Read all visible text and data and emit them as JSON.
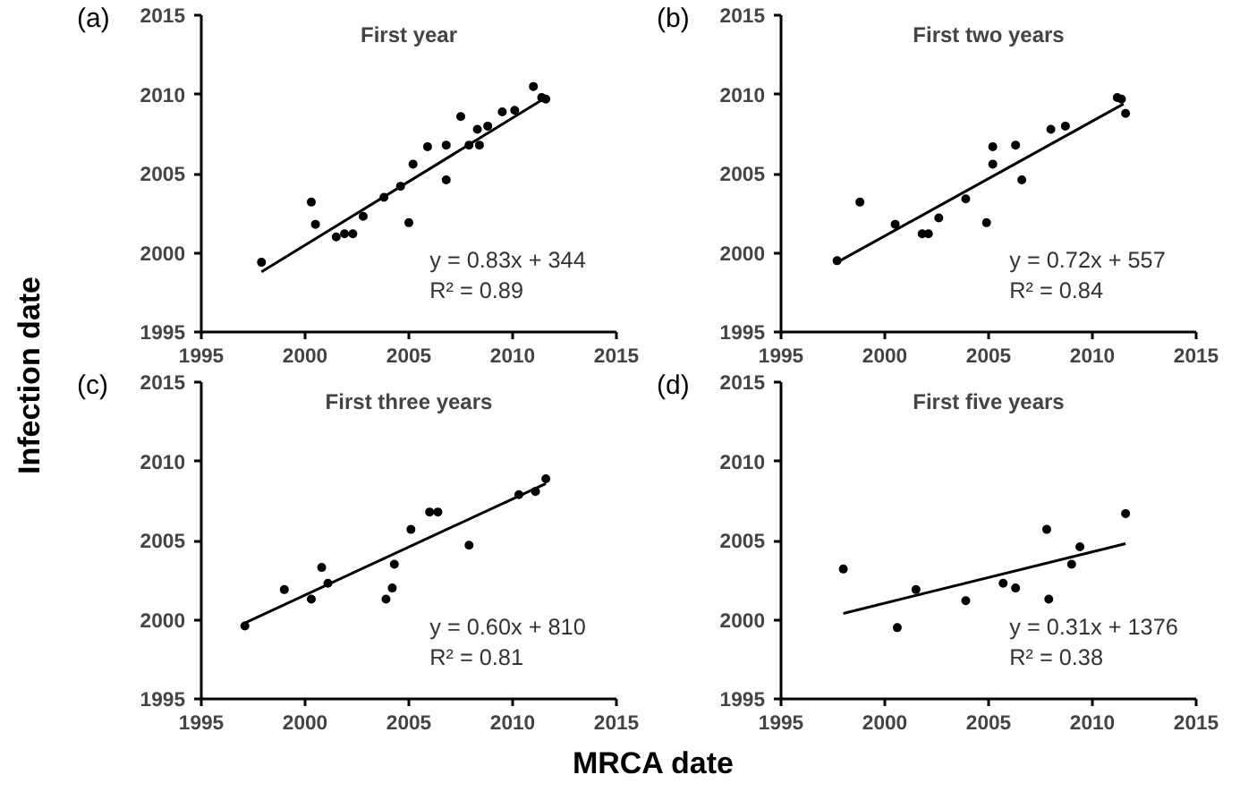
{
  "chart_data": [
    {
      "type": "scatter",
      "title": "First year",
      "ylabel": "Infection date",
      "annotations": [
        "(a)",
        "y = 0.83x + 344",
        "R² = 0.89"
      ],
      "xlim": [
        1995,
        2015
      ],
      "ylim": [
        1995,
        2015
      ],
      "xticks": [
        1995,
        2000,
        2005,
        2010,
        2015
      ],
      "yticks": [
        1995,
        2000,
        2005,
        2010,
        2015
      ],
      "grid": false,
      "marker": "circle",
      "series": [
        {
          "type": "scatter",
          "color": "#000000",
          "x": [
            1997.9,
            2000.3,
            2000.5,
            2001.5,
            2001.9,
            2002.3,
            2002.8,
            2003.8,
            2004.6,
            2005.0,
            2005.2,
            2005.9,
            2006.8,
            2006.8,
            2007.5,
            2007.9,
            2008.3,
            2008.4,
            2008.8,
            2009.5,
            2010.1,
            2011.0,
            2011.4,
            2011.6
          ],
          "values": [
            1999.4,
            2003.2,
            2001.8,
            2001.0,
            2001.2,
            2001.2,
            2002.3,
            2003.5,
            2004.2,
            2001.9,
            2005.6,
            2006.7,
            2006.8,
            2004.6,
            2008.6,
            2006.8,
            2007.8,
            2006.8,
            2008.0,
            2008.9,
            2009.0,
            2010.5,
            2009.8,
            2009.7
          ]
        },
        {
          "type": "line",
          "color": "#000000",
          "marker": "none",
          "x": [
            1997.9,
            2011.6
          ],
          "values": [
            1998.8,
            2009.8
          ]
        }
      ]
    },
    {
      "type": "scatter",
      "title": "First two years",
      "annotations": [
        "(b)",
        "y = 0.72x + 557",
        "R² = 0.84"
      ],
      "xlim": [
        1995,
        2015
      ],
      "ylim": [
        1995,
        2015
      ],
      "xticks": [
        1995,
        2000,
        2005,
        2010,
        2015
      ],
      "yticks": [
        1995,
        2000,
        2005,
        2010,
        2015
      ],
      "grid": false,
      "marker": "circle",
      "series": [
        {
          "type": "scatter",
          "color": "#000000",
          "x": [
            1997.7,
            1998.8,
            2000.5,
            2001.8,
            2002.1,
            2002.6,
            2003.9,
            2004.9,
            2005.2,
            2005.2,
            2006.3,
            2006.6,
            2008.0,
            2008.7,
            2011.2,
            2011.4,
            2011.6
          ],
          "values": [
            1999.5,
            2003.2,
            2001.8,
            2001.2,
            2001.2,
            2002.2,
            2003.4,
            2001.9,
            2006.7,
            2005.6,
            2006.8,
            2004.6,
            2007.8,
            2008.0,
            2009.8,
            2009.7,
            2008.8
          ]
        },
        {
          "type": "line",
          "color": "#000000",
          "marker": "none",
          "x": [
            1997.7,
            2011.5
          ],
          "values": [
            1999.4,
            2009.4
          ]
        }
      ]
    },
    {
      "type": "scatter",
      "title": "First three years",
      "xlabel": "MRCA date",
      "annotations": [
        "(c)",
        "y = 0.60x + 810",
        "R² = 0.81"
      ],
      "xlim": [
        1995,
        2015
      ],
      "ylim": [
        1995,
        2015
      ],
      "xticks": [
        1995,
        2000,
        2005,
        2010,
        2015
      ],
      "yticks": [
        1995,
        2000,
        2005,
        2010,
        2015
      ],
      "grid": false,
      "marker": "circle",
      "series": [
        {
          "type": "scatter",
          "color": "#000000",
          "x": [
            1997.1,
            1999.0,
            2000.3,
            2000.8,
            2001.1,
            2003.9,
            2004.2,
            2004.3,
            2005.1,
            2006.0,
            2006.4,
            2007.9,
            2010.3,
            2011.1,
            2011.6
          ],
          "values": [
            1999.6,
            2001.9,
            2001.3,
            2003.3,
            2002.3,
            2001.3,
            2002.0,
            2003.5,
            2005.7,
            2006.8,
            2006.8,
            2004.7,
            2007.9,
            2008.1,
            2008.9
          ]
        },
        {
          "type": "line",
          "color": "#000000",
          "marker": "none",
          "x": [
            1997.1,
            2011.6
          ],
          "values": [
            1999.8,
            2008.6
          ]
        }
      ]
    },
    {
      "type": "scatter",
      "title": "First five years",
      "annotations": [
        "(d)",
        "y = 0.31x + 1376",
        "R² = 0.38"
      ],
      "xlim": [
        1995,
        2015
      ],
      "ylim": [
        1995,
        2015
      ],
      "xticks": [
        1995,
        2000,
        2005,
        2010,
        2015
      ],
      "yticks": [
        1995,
        2000,
        2005,
        2010,
        2015
      ],
      "grid": false,
      "marker": "circle",
      "series": [
        {
          "type": "scatter",
          "color": "#000000",
          "x": [
            1998.0,
            2000.6,
            2001.5,
            2003.9,
            2005.7,
            2006.3,
            2007.8,
            2007.9,
            2009.0,
            2009.4,
            2011.6
          ],
          "values": [
            2003.2,
            1999.5,
            2001.9,
            2001.2,
            2002.3,
            2002.0,
            2005.7,
            2001.3,
            2003.5,
            2004.6,
            2006.7
          ]
        },
        {
          "type": "line",
          "color": "#000000",
          "marker": "none",
          "x": [
            1998.0,
            2011.6
          ],
          "values": [
            2000.4,
            2004.8
          ]
        }
      ]
    }
  ]
}
